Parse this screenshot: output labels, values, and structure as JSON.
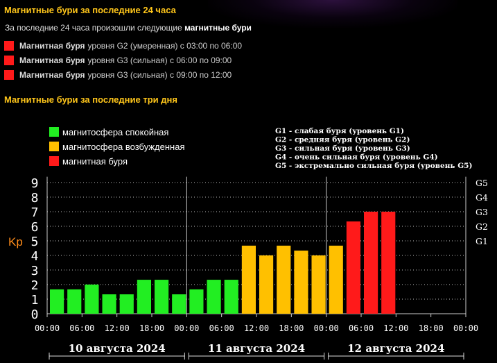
{
  "last24": {
    "title": "Магнитные бури за последние 24 часа",
    "intro_prefix": "За последние 24 часа произошли следующие",
    "intro_bold": "магнитные бури",
    "storms": [
      {
        "bold": "Магнитная буря",
        "text": "уровня G2 (умеренная) с 03:00 по 06:00"
      },
      {
        "bold": "Магнитная буря",
        "text": "уровня G3 (сильная) с 06:00 по 09:00"
      },
      {
        "bold": "Магнитная буря",
        "text": "уровня G3 (сильная) с 09:00 по 12:00"
      }
    ]
  },
  "colors": {
    "quiet": "#22ee22",
    "active": "#ffc000",
    "storm": "#ff1a1a",
    "title": "#ffc61a",
    "ylabel": "#ff8c1a"
  },
  "chart_data": {
    "type": "bar",
    "title": "Магнитные бури за последние три дня",
    "ylabel": "Kp",
    "ylim": [
      0,
      9
    ],
    "yticks": [
      "0",
      "1",
      "2",
      "3",
      "4",
      "5",
      "6",
      "7",
      "8",
      "9"
    ],
    "g_ticks": [
      {
        "label": "G1",
        "value": 5
      },
      {
        "label": "G2",
        "value": 6
      },
      {
        "label": "G3",
        "value": 7
      },
      {
        "label": "G4",
        "value": 8
      },
      {
        "label": "G5",
        "value": 9
      }
    ],
    "legend": [
      {
        "label": "магнитосфера спокойная",
        "color": "#22ee22"
      },
      {
        "label": "магнитосфера возбужденная",
        "color": "#ffc000"
      },
      {
        "label": "магнитная буря",
        "color": "#ff1a1a"
      }
    ],
    "g_legend": [
      "G1 - слабая буря (уровень G1)",
      "G2 - средняя буря (уровень G2)",
      "G3 - сильная буря (уровень G3)",
      "G4 - очень сильная буря (уровень G4)",
      "G5 - экстремально сильная буря (уровень G5)"
    ],
    "days": [
      "10 августа 2024",
      "11 августа 2024",
      "12 августа 2024"
    ],
    "time_labels": [
      "00:00",
      "06:00",
      "12:00",
      "18:00",
      "00:00",
      "06:00",
      "12:00",
      "18:00",
      "00:00",
      "06:00",
      "12:00",
      "18:00",
      "00:00"
    ],
    "slots_per_day": 8,
    "values": [
      1.67,
      1.67,
      2.0,
      1.33,
      1.33,
      2.33,
      2.33,
      1.33,
      1.67,
      2.33,
      2.33,
      4.67,
      4.0,
      4.67,
      4.33,
      4.0,
      4.67,
      6.33,
      7.0,
      7.0
    ],
    "levels": [
      "quiet",
      "quiet",
      "quiet",
      "quiet",
      "quiet",
      "quiet",
      "quiet",
      "quiet",
      "quiet",
      "quiet",
      "quiet",
      "active",
      "active",
      "active",
      "active",
      "active",
      "active",
      "storm",
      "storm",
      "storm"
    ]
  }
}
